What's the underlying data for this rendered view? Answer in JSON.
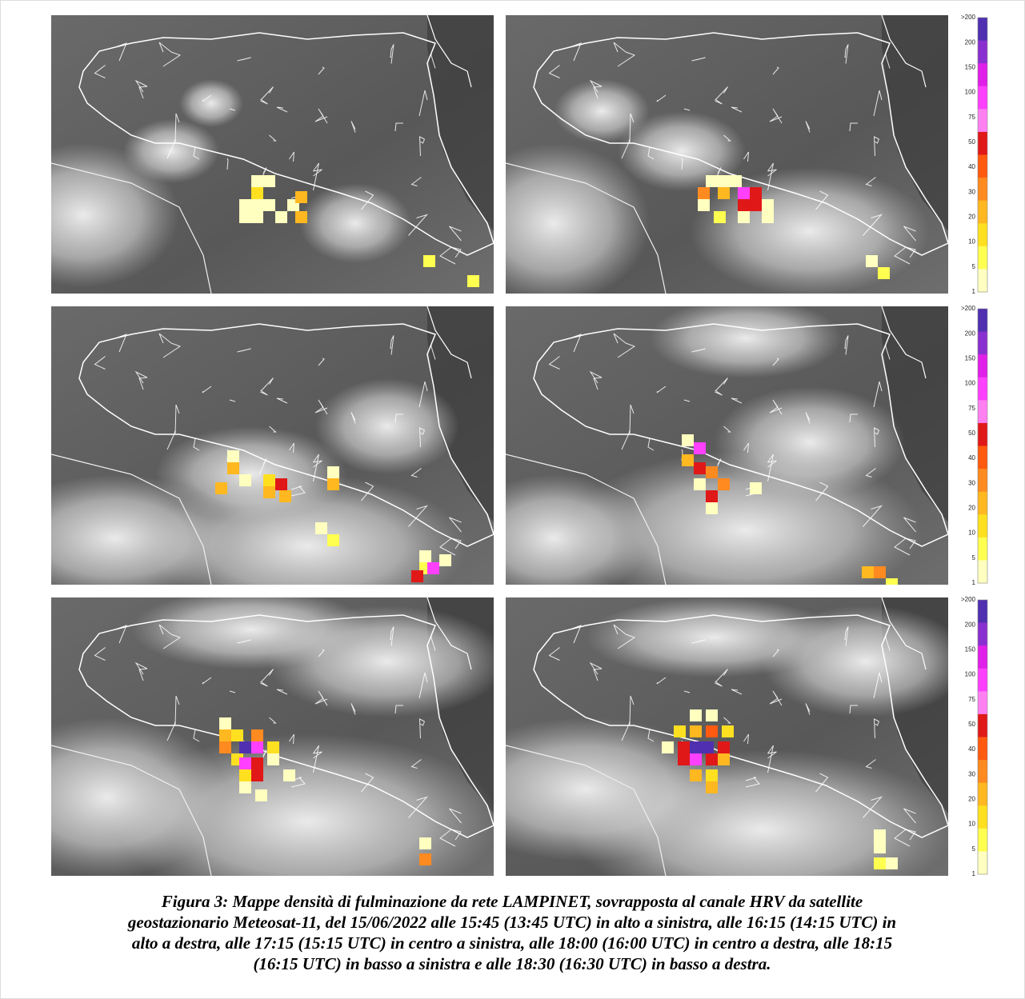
{
  "figure": {
    "colorbar_labels": [
      ">200",
      "200",
      "150",
      "100",
      "75",
      "50",
      "40",
      "30",
      "20",
      "10",
      "5",
      "1"
    ],
    "caption_lines": [
      "Figura 3: Mappe densità di fulminazione da rete LAMPINET, sovrapposta al canale HRV da satellite",
      "geostazionario Meteosat-11, del 15/06/2022 alle 15:45 (13:45 UTC) in alto a sinistra, alle 16:15 (14:15 UTC) in",
      "alto a destra, alle 17:15 (15:15 UTC) in centro a sinistra, alle 18:00 (16:00 UTC) in centro a destra, alle 18:15",
      "(16:15 UTC) in basso a sinistra e alle 18:30 (16:30 UTC) in basso a destra."
    ]
  }
}
